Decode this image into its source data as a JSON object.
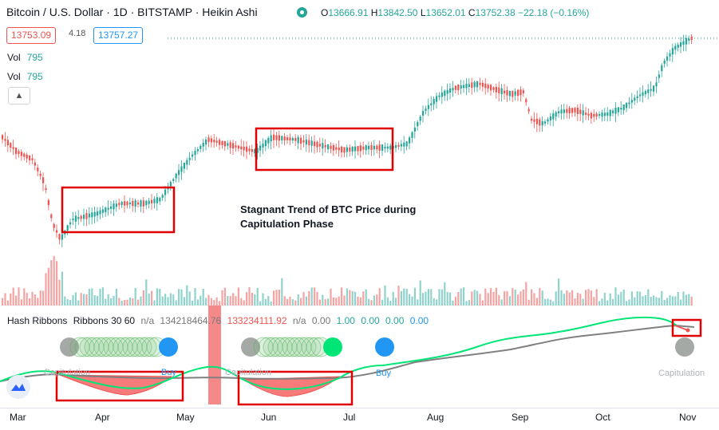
{
  "header": {
    "title": "Bitcoin / U.S. Dollar · 1D · BITSTAMP · Heikin Ashi",
    "ohlc": {
      "o_label": "O",
      "o_value": "13666.91",
      "h_label": "H",
      "h_value": "13842.50",
      "l_label": "L",
      "l_value": "13652.01",
      "c_label": "C",
      "c_value": "13752.38",
      "change": "−22.18 (−0.16%)"
    }
  },
  "trade": {
    "bid": "13753.09",
    "spread": "4.18",
    "ask": "13757.27"
  },
  "volume_rows": [
    {
      "label": "Vol",
      "value": "795"
    },
    {
      "label": "Vol",
      "value": "795"
    }
  ],
  "annotation": {
    "line1": "Stagnant Trend of BTC Price during",
    "line2": "Capitulation Phase"
  },
  "hash_ribbons": {
    "name": "Hash Ribbons",
    "params": "Ribbons 30 60",
    "v1": "n/a",
    "v2": "134218464.76",
    "v3": "133234111.92",
    "v4": "n/a",
    "v5": "0.00",
    "v6": "1.00",
    "v7": "0.00",
    "v8": "0.00",
    "v9": "0.00",
    "signals": [
      "Capitulation",
      "Buy",
      "Capitulation",
      "Buy",
      "Capitulation"
    ]
  },
  "x_axis": {
    "months": [
      "Mar",
      "Apr",
      "May",
      "Jun",
      "Jul",
      "Aug",
      "Sep",
      "Oct",
      "Nov"
    ]
  },
  "colors": {
    "up": "#26a69a",
    "down": "#ef5350",
    "highlight_box": "#e00000",
    "fast_ma": "#00e676",
    "slow_ma": "#808080",
    "buy": "#2196f3",
    "capitulation_fill": "#f77b7b"
  },
  "icons": [
    "tradingview-logo-icon",
    "chevron-up-icon"
  ]
}
